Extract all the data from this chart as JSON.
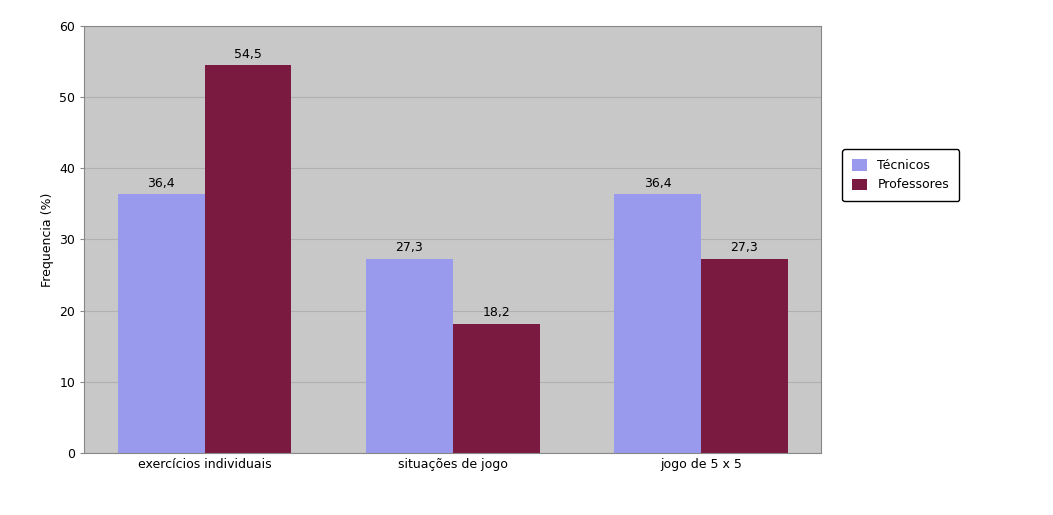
{
  "categories": [
    "exercícios individuais",
    "situações de jogo",
    "jogo de 5 x 5"
  ],
  "tecnicos": [
    36.4,
    27.3,
    36.4
  ],
  "professores": [
    54.5,
    18.2,
    27.3
  ],
  "tecnicos_label": "Técnicos",
  "professores_label": "Professores",
  "tecnicos_color": "#9999ee",
  "professores_color": "#7b1a40",
  "ylabel": "Frequencia (%)",
  "ylim": [
    0,
    60
  ],
  "yticks": [
    0,
    10,
    20,
    30,
    40,
    50,
    60
  ],
  "figure_bg_color": "#ffffff",
  "plot_bg_color": "#c8c8c8",
  "bar_width": 0.35,
  "label_fontsize": 9,
  "tick_fontsize": 9,
  "legend_fontsize": 9,
  "ylabel_fontsize": 9,
  "grid_color": "#b0b0b0"
}
